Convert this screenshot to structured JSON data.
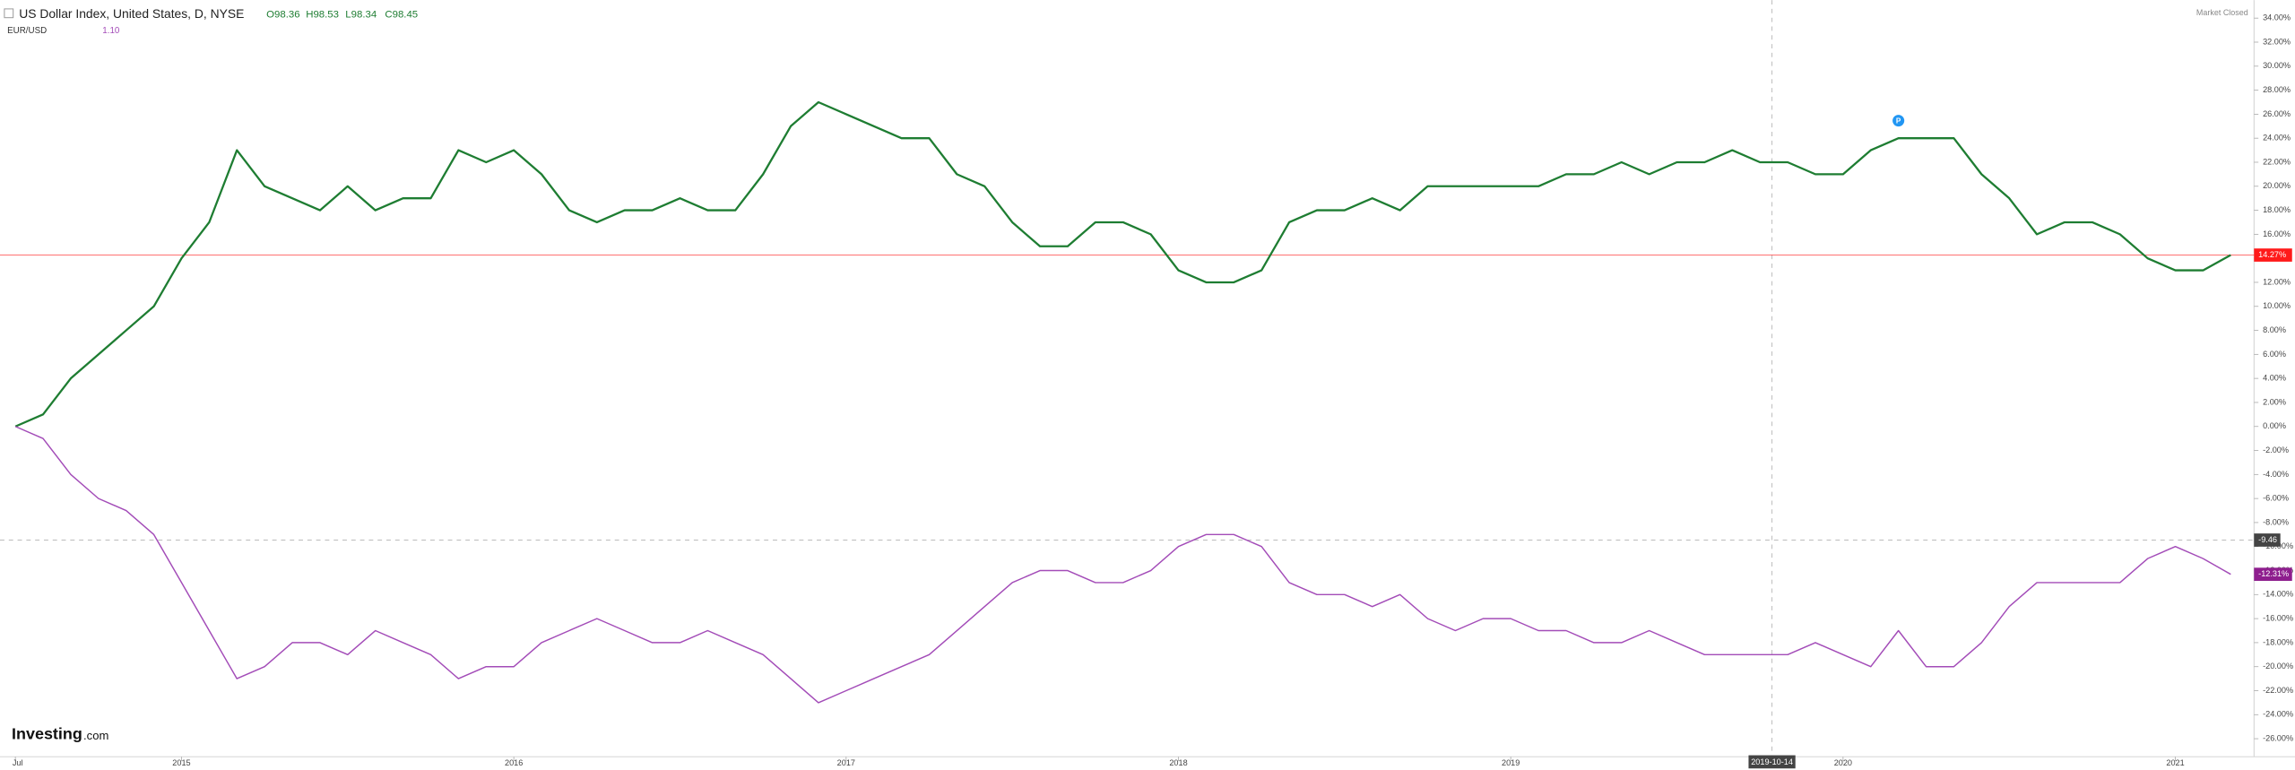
{
  "chart_data": {
    "type": "line",
    "categories": [
      "Jul",
      null,
      null,
      null,
      null,
      null,
      "2015",
      null,
      null,
      null,
      null,
      null,
      null,
      null,
      null,
      null,
      null,
      null,
      "2016",
      null,
      null,
      null,
      null,
      null,
      null,
      null,
      null,
      null,
      null,
      null,
      "2017",
      null,
      null,
      null,
      null,
      null,
      null,
      null,
      null,
      null,
      null,
      null,
      "2018",
      null,
      null,
      null,
      null,
      null,
      null,
      null,
      null,
      null,
      null,
      null,
      "2019",
      null,
      null,
      null,
      null,
      null,
      null,
      null,
      null,
      null,
      null,
      null,
      "2020",
      null,
      null,
      null,
      null,
      null,
      null,
      null,
      null,
      null,
      null,
      null,
      "2021",
      null,
      null
    ],
    "series": [
      {
        "name": "US Dollar Index, United States, D, NYSE",
        "color": "#1e7d32",
        "values": [
          0,
          1,
          4,
          6,
          8,
          10,
          14,
          17,
          23,
          20,
          19,
          18,
          20,
          18,
          19,
          19,
          23,
          22,
          23,
          21,
          18,
          17,
          18,
          18,
          19,
          18,
          18,
          21,
          25,
          27,
          26,
          25,
          24,
          24,
          21,
          20,
          17,
          15,
          15,
          17,
          17,
          16,
          13,
          12,
          12,
          13,
          17,
          18,
          18,
          19,
          18,
          20,
          20,
          20,
          20,
          20,
          21,
          21,
          22,
          21,
          22,
          22,
          23,
          22,
          22,
          21,
          21,
          23,
          24,
          24,
          24,
          21,
          19,
          16,
          17,
          17,
          16,
          14,
          13,
          13,
          14.27
        ]
      },
      {
        "name": "EUR/USD",
        "color": "#a34cb8",
        "values": [
          0,
          -1,
          -4,
          -6,
          -7,
          -9,
          -13,
          -17,
          -21,
          -20,
          -18,
          -18,
          -19,
          -17,
          -18,
          -19,
          -21,
          -20,
          -20,
          -18,
          -17,
          -16,
          -17,
          -18,
          -18,
          -17,
          -18,
          -19,
          -21,
          -23,
          -22,
          -21,
          -20,
          -19,
          -17,
          -15,
          -13,
          -12,
          -12,
          -13,
          -13,
          -12,
          -10,
          -9,
          -9,
          -10,
          -13,
          -14,
          -14,
          -15,
          -14,
          -16,
          -17,
          -16,
          -16,
          -17,
          -17,
          -18,
          -18,
          -17,
          -18,
          -19,
          -19,
          -19,
          -19,
          -18,
          -19,
          -20,
          -17,
          -20,
          -20,
          -18,
          -15,
          -13,
          -13,
          -13,
          -13,
          -11,
          -10,
          -11,
          -12.31
        ]
      }
    ],
    "ohlc": [
      "O98.36",
      "H98.53",
      "L98.34",
      "C98.45"
    ],
    "secondary_last": "1.10",
    "status": "Market Closed",
    "logo": [
      "Investing",
      ".com"
    ],
    "price_tags": [
      {
        "value": 14.27,
        "label": "14.27%",
        "color": "#ff1a1a"
      },
      {
        "value": -12.31,
        "label": "-12.31%",
        "color": "#8e1e8e"
      }
    ],
    "crosshair": {
      "x": "2019-10-14",
      "y": {
        "value": -9.46,
        "label": "-9.46"
      }
    },
    "annotations": [
      {
        "index": 68,
        "label": "P"
      }
    ],
    "ylim": [
      -27.5,
      35.5
    ],
    "yticks": [
      {
        "value": 34,
        "label": "34.00%"
      },
      {
        "value": 32,
        "label": "32.00%"
      },
      {
        "value": 30,
        "label": "30.00%"
      },
      {
        "value": 28,
        "label": "28.00%"
      },
      {
        "value": 26,
        "label": "26.00%"
      },
      {
        "value": 24,
        "label": "24.00%"
      },
      {
        "value": 22,
        "label": "22.00%"
      },
      {
        "value": 20,
        "label": "20.00%"
      },
      {
        "value": 18,
        "label": "18.00%"
      },
      {
        "value": 16,
        "label": "16.00%"
      },
      {
        "value": 14,
        "label": "14.00%"
      },
      {
        "value": 12,
        "label": "12.00%"
      },
      {
        "value": 10,
        "label": "10.00%"
      },
      {
        "value": 8,
        "label": "8.00%"
      },
      {
        "value": 6,
        "label": "6.00%"
      },
      {
        "value": 4,
        "label": "4.00%"
      },
      {
        "value": 2,
        "label": "2.00%"
      },
      {
        "value": 0,
        "label": "0.00%"
      },
      {
        "value": -2,
        "label": "-2.00%"
      },
      {
        "value": -4,
        "label": "-4.00%"
      },
      {
        "value": -6,
        "label": "-6.00%"
      },
      {
        "value": -8,
        "label": "-8.00%"
      },
      {
        "value": -10,
        "label": "-10.00%"
      },
      {
        "value": -12,
        "label": "-12.00%"
      },
      {
        "value": -14,
        "label": "-14.00%"
      },
      {
        "value": -16,
        "label": "-16.00%"
      },
      {
        "value": -18,
        "label": "-18.00%"
      },
      {
        "value": -20,
        "label": "-20.00%"
      },
      {
        "value": -22,
        "label": "-22.00%"
      },
      {
        "value": -24,
        "label": "-24.00%"
      },
      {
        "value": -26,
        "label": "-26.00%"
      }
    ],
    "grid": false
  }
}
